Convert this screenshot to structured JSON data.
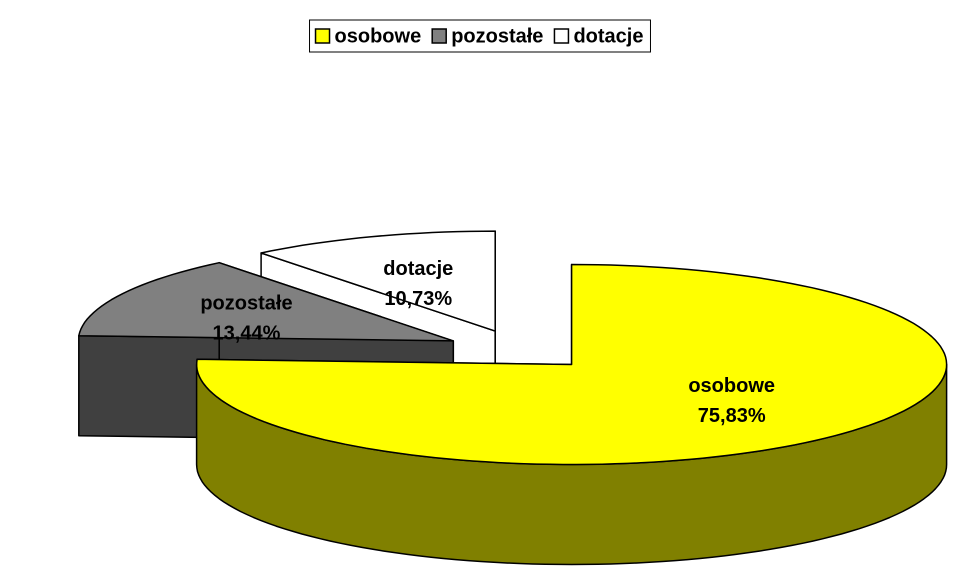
{
  "chart_data": {
    "type": "pie3d",
    "categories": [
      "osobowe",
      "pozostałe",
      "dotacje"
    ],
    "values": [
      75.83,
      13.44,
      10.73
    ],
    "value_labels": [
      "75,83%",
      "13,44%",
      "10,73%"
    ],
    "colors": [
      "#ffff00",
      "#808080",
      "#ffffff"
    ],
    "side_colors": [
      "#808000",
      "#404040",
      "#ffffff"
    ],
    "legend": "top",
    "explode": 0.2
  }
}
